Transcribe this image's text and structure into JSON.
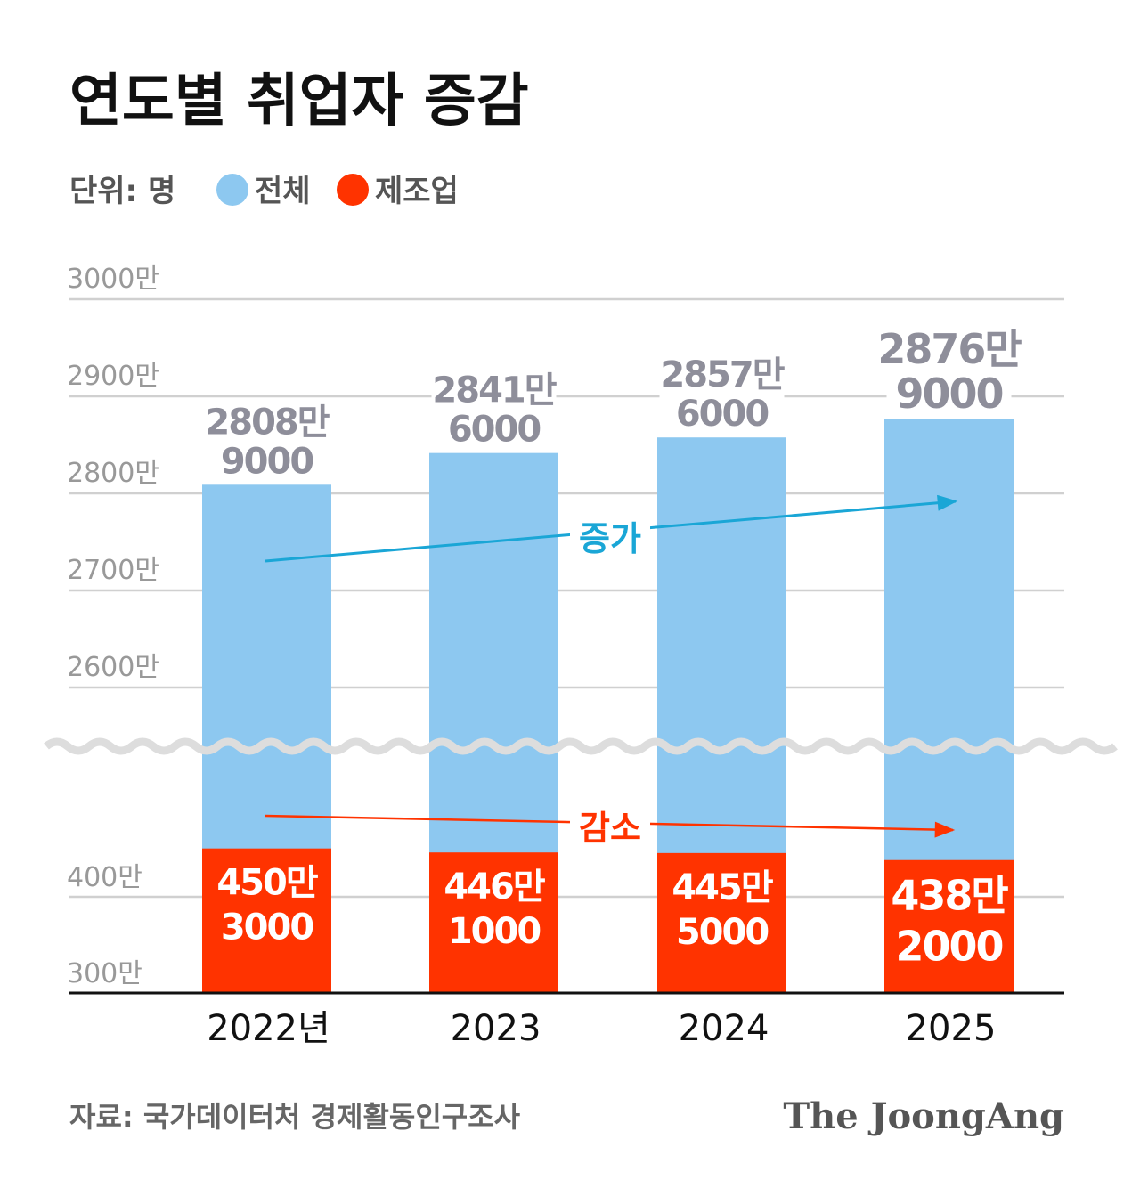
{
  "chart_data": {
    "type": "bar",
    "title": "연도별 취업자 증감",
    "unit_label": "단위: 명",
    "legend": [
      {
        "name": "전체",
        "color": "#8DC8F0"
      },
      {
        "name": "제조업",
        "color": "#FF3300"
      }
    ],
    "legend_placement": "top-left",
    "categories": [
      "2022년",
      "2023",
      "2024",
      "2025"
    ],
    "series": [
      {
        "name": "전체",
        "values": [
          28089000,
          28416000,
          28576000,
          28769000
        ],
        "labels": [
          [
            "2808만",
            "9000"
          ],
          [
            "2841만",
            "6000"
          ],
          [
            "2857만",
            "6000"
          ],
          [
            "2876만",
            "9000"
          ]
        ]
      },
      {
        "name": "제조업",
        "values": [
          4503000,
          4461000,
          4455000,
          4382000
        ],
        "labels": [
          [
            "450만",
            "3000"
          ],
          [
            "446만",
            "1000"
          ],
          [
            "445만",
            "5000"
          ],
          [
            "438만",
            "2000"
          ]
        ]
      }
    ],
    "axis_break": true,
    "upper_ticks": [
      "3000만",
      "2900만",
      "2800만",
      "2700만",
      "2600만"
    ],
    "upper_tick_values": [
      30000000,
      29000000,
      28000000,
      27000000,
      26000000
    ],
    "lower_ticks": [
      "400만",
      "300만"
    ],
    "lower_tick_values": [
      4000000,
      3000000
    ],
    "grid": true,
    "annotations": [
      {
        "text": "증가",
        "color": "#1AA6D6"
      },
      {
        "text": "감소",
        "color": "#FF3300"
      }
    ],
    "source": "자료: 국가데이터처 경제활동인구조사",
    "brand": "The JoongAng"
  }
}
